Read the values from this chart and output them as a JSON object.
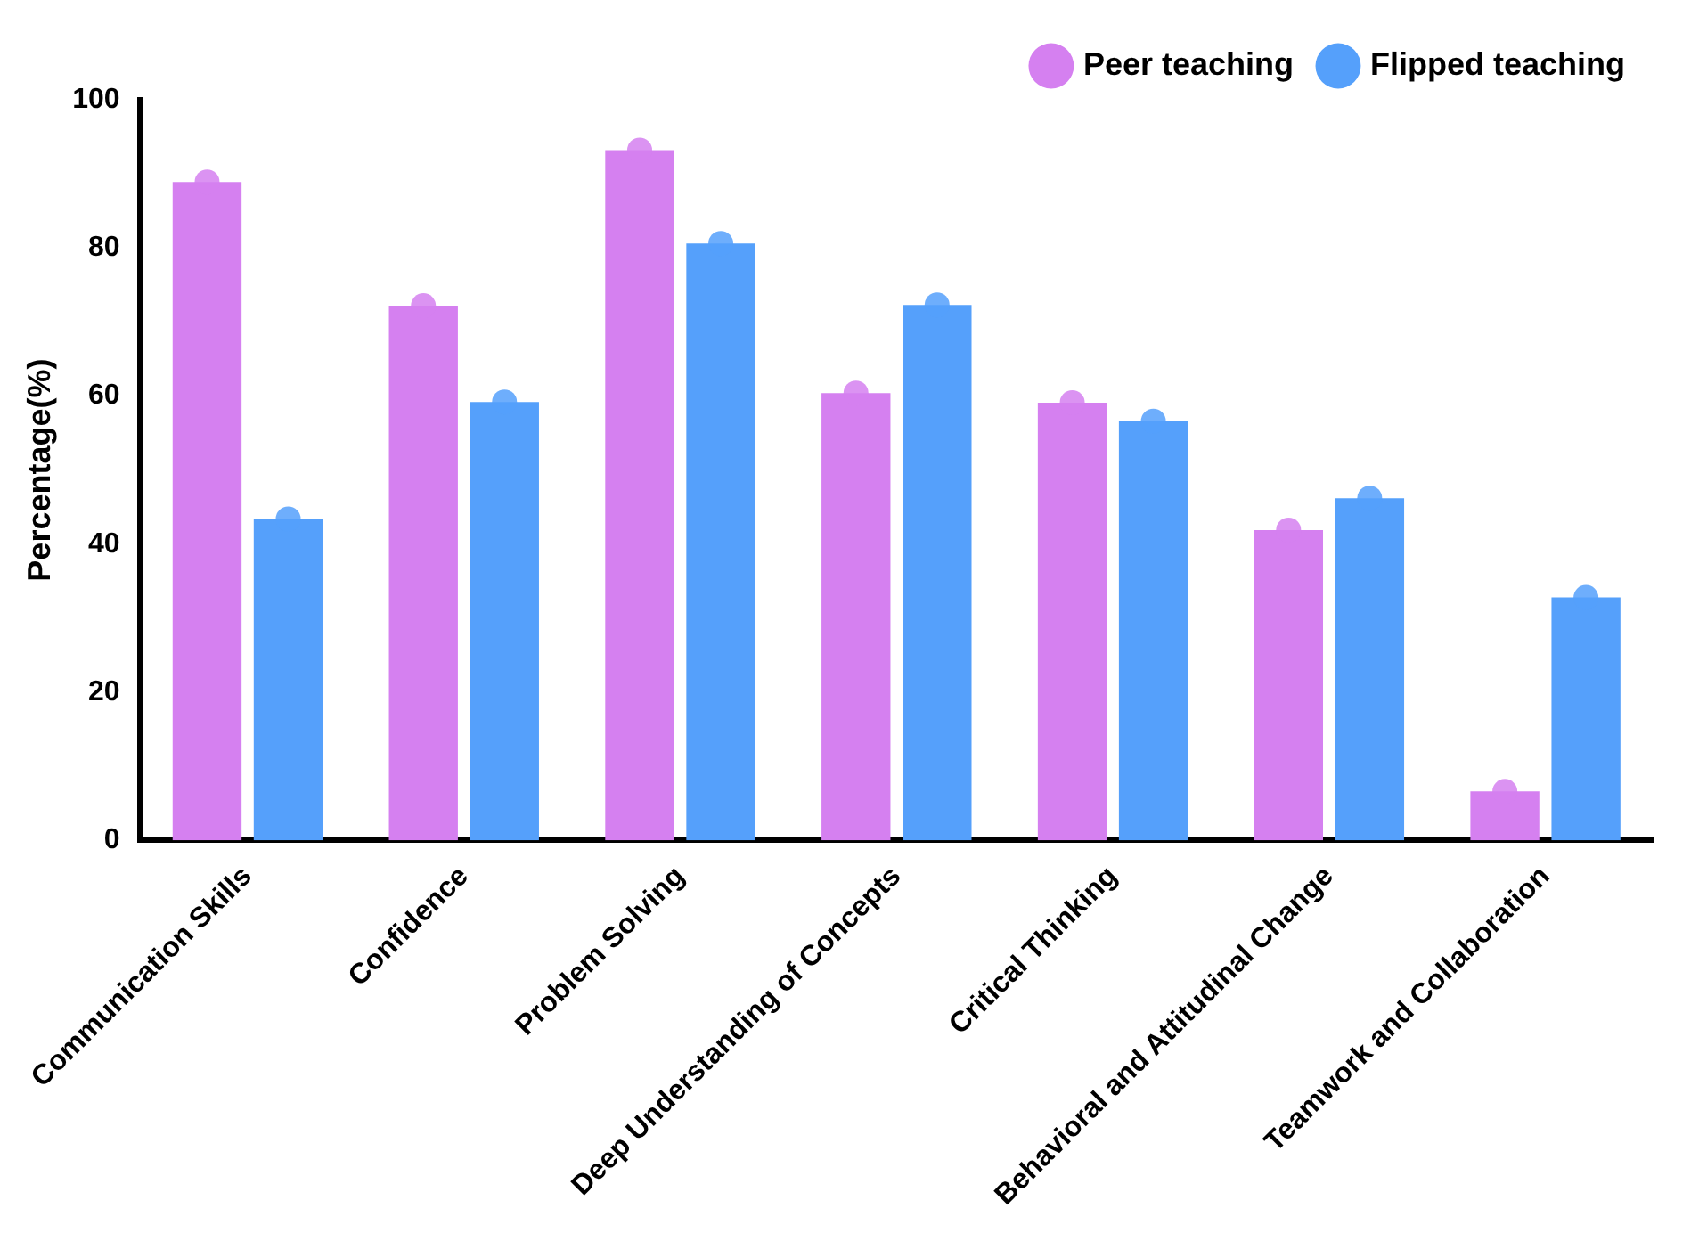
{
  "chart_data": {
    "type": "bar",
    "ylabel": "Percentage(%)",
    "categories": [
      "Communication Skills",
      "Confidence",
      "Problem Solving",
      "Deep Understanding of Concepts",
      "Critical Thinking",
      "Behavioral and Attitudinal Change",
      "Teamwork and Collaboration"
    ],
    "series": [
      {
        "name": "Peer teaching",
        "color": "#d580f0",
        "values": [
          88.9,
          72.2,
          93.2,
          60.4,
          59.1,
          41.9,
          6.6
        ]
      },
      {
        "name": "Flipped teaching",
        "color": "#55a0fb",
        "values": [
          43.4,
          59.2,
          80.6,
          72.3,
          56.6,
          46.2,
          32.8
        ]
      },
      {
        "type": "scatter",
        "color": "#d580f0",
        "x": [
          "Communication Skills",
          "Confidence",
          "Problem Solving",
          "Deep Understanding of Concepts",
          "Critical Thinking",
          "Behavioral and Attitudinal Change",
          "Teamwork and Collaboration"
        ],
        "values": [
          88.9,
          72.2,
          93.2,
          60.4,
          59.1,
          41.9,
          6.6
        ]
      },
      {
        "type": "scatter",
        "color": "#55a0fb",
        "x": [
          "Communication Skills",
          "Confidence",
          "Problem Solving",
          "Deep Understanding of Concepts",
          "Critical Thinking",
          "Behavioral and Attitudinal Change",
          "Teamwork and Collaboration"
        ],
        "values": [
          43.4,
          59.2,
          80.6,
          72.3,
          56.6,
          46.2,
          32.8
        ]
      }
    ],
    "ylim": [
      0,
      100
    ],
    "yticks": [
      0,
      20,
      40,
      60,
      80,
      100
    ],
    "grid": false,
    "legend": "top",
    "marker": "circle"
  }
}
